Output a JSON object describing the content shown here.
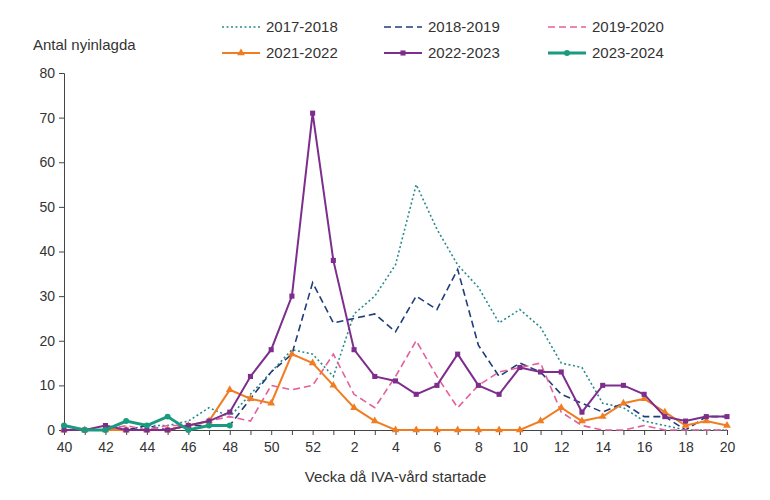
{
  "chart_data": {
    "type": "line",
    "x_label": "Vecka då IVA-vård startade",
    "y_label": "Antal nyinlagda",
    "categories": [
      "40",
      null,
      "42",
      null,
      "44",
      null,
      "46",
      null,
      "48",
      null,
      "50",
      null,
      "52",
      null,
      "2",
      null,
      "4",
      null,
      "6",
      null,
      "8",
      null,
      "10",
      null,
      "12",
      null,
      "14",
      null,
      "16",
      null,
      "18",
      null,
      "20"
    ],
    "ylim": [
      0,
      80
    ],
    "yticks": [
      0,
      10,
      20,
      30,
      40,
      50,
      60,
      70,
      80
    ],
    "grid": false,
    "legend": "top",
    "series": [
      {
        "name": "2017-2018",
        "color": "#2a8a8c",
        "line_style": "dotted",
        "values": [
          0,
          0,
          0,
          0,
          1,
          1,
          2,
          5,
          3,
          8,
          13,
          18,
          17,
          12,
          26,
          30,
          37,
          55,
          45,
          37,
          32,
          24,
          27,
          23,
          15,
          14,
          6,
          5,
          2,
          1,
          0,
          0,
          0
        ]
      },
      {
        "name": "2018-2019",
        "color": "#1f3d7a",
        "line_style": "dashed",
        "values": [
          0,
          0,
          0,
          0,
          1,
          0,
          1,
          1,
          1,
          7,
          13,
          17,
          33,
          24,
          25,
          26,
          22,
          30,
          27,
          36,
          19,
          12,
          15,
          13,
          8,
          6,
          4,
          6,
          3,
          3,
          0,
          3,
          3
        ]
      },
      {
        "name": "2019-2020",
        "color": "#e3609b",
        "line_style": "dashed",
        "values": [
          0,
          0,
          0,
          1,
          0,
          1,
          1,
          2,
          3,
          2,
          10,
          9,
          10,
          17,
          8,
          5,
          12,
          20,
          12,
          5,
          10,
          13,
          14,
          15,
          4,
          1,
          0,
          0,
          1,
          0,
          0,
          0,
          0
        ]
      },
      {
        "name": "2021-2022",
        "color": "#f07d22",
        "line_style": "solid",
        "marker": "triangle",
        "values": [
          0,
          0,
          0,
          0,
          0,
          0,
          1,
          2,
          9,
          7,
          6,
          17,
          15,
          10,
          5,
          2,
          0,
          0,
          0,
          0,
          0,
          0,
          0,
          2,
          5,
          2,
          3,
          6,
          7,
          4,
          1,
          2,
          1
        ]
      },
      {
        "name": "2022-2023",
        "color": "#7d2e8c",
        "line_style": "solid",
        "marker": "square",
        "values": [
          0,
          0,
          1,
          0,
          0,
          0,
          1,
          2,
          4,
          12,
          18,
          30,
          71,
          38,
          18,
          12,
          11,
          8,
          10,
          17,
          10,
          8,
          14,
          13,
          13,
          4,
          10,
          10,
          8,
          3,
          2,
          3,
          3
        ]
      },
      {
        "name": "2023-2024",
        "color": "#1a9a7e",
        "line_style": "solid",
        "marker": "circle",
        "values": [
          1,
          0,
          0,
          2,
          1,
          3,
          0,
          1,
          1,
          null,
          null,
          null,
          null,
          null,
          null,
          null,
          null,
          null,
          null,
          null,
          null,
          null,
          null,
          null,
          null,
          null,
          null,
          null,
          null,
          null,
          null,
          null,
          null
        ]
      }
    ]
  }
}
